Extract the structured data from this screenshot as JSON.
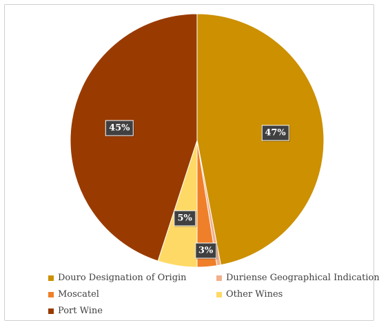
{
  "chart_data": {
    "type": "pie",
    "title": "",
    "slices": [
      {
        "label": "Douro Designation of Origin",
        "value": 47,
        "display": "47%",
        "color": "#CC9000"
      },
      {
        "label": "Duriense Geographical Indication",
        "value": 0.5,
        "display": "",
        "color": "#F2B08C"
      },
      {
        "label": "Moscatel",
        "value": 2.5,
        "display": "3%",
        "color": "#F07F2A"
      },
      {
        "label": "Other Wines",
        "value": 5,
        "display": "5%",
        "color": "#FFD966"
      },
      {
        "label": "Port Wine",
        "value": 45,
        "display": "45%",
        "color": "#993B00"
      }
    ],
    "legend_position": "bottom",
    "start_angle_deg": 0,
    "direction": "clockwise"
  }
}
